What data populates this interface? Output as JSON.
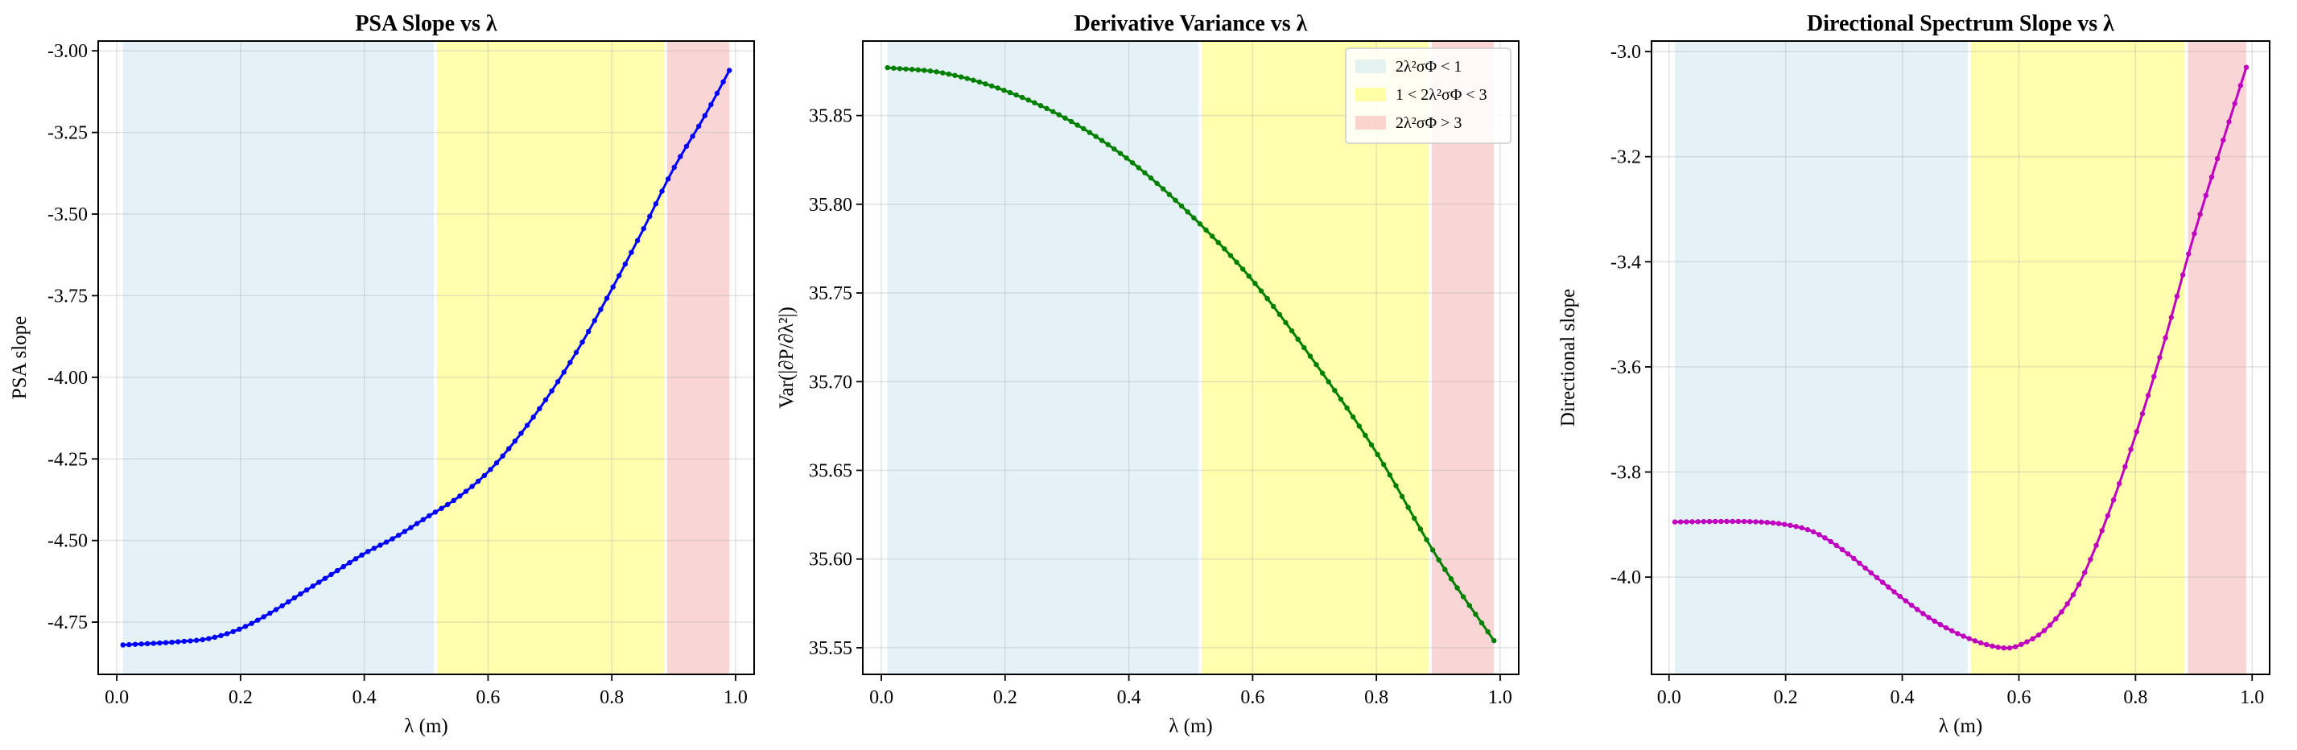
{
  "chart_data": [
    {
      "type": "line",
      "title": "PSA Slope vs λ",
      "xlabel": "λ (m)",
      "ylabel": "PSA slope",
      "xlim": [
        -0.03,
        1.03
      ],
      "ylim": [
        -4.91,
        -2.97
      ],
      "xticks": [
        0.0,
        0.2,
        0.4,
        0.6,
        0.8,
        1.0
      ],
      "xtick_labels": [
        "0.0",
        "0.2",
        "0.4",
        "0.6",
        "0.8",
        "1.0"
      ],
      "yticks": [
        -3.0,
        -3.25,
        -3.5,
        -3.75,
        -4.0,
        -4.25,
        -4.5,
        -4.75
      ],
      "ytick_labels": [
        "-3.00",
        "-3.25",
        "-3.50",
        "-3.75",
        "-4.00",
        "-4.25",
        "-4.50",
        "-4.75"
      ],
      "grid": true,
      "regions": [
        {
          "from": 0.01,
          "to": 0.515,
          "color": "#add8e6"
        },
        {
          "from": 0.515,
          "to": 0.887,
          "color": "#ffff00"
        },
        {
          "from": 0.887,
          "to": 0.99,
          "color": "#f08080"
        }
      ],
      "series": [
        {
          "color": "#0000ff",
          "x": [
            0.01,
            0.1,
            0.15,
            0.2,
            0.25,
            0.3,
            0.35,
            0.4,
            0.45,
            0.5,
            0.55,
            0.6,
            0.65,
            0.7,
            0.75,
            0.8,
            0.85,
            0.9,
            0.95,
            0.99
          ],
          "y": [
            -4.82,
            -4.81,
            -4.8,
            -4.77,
            -4.72,
            -4.66,
            -4.6,
            -4.54,
            -4.49,
            -4.43,
            -4.37,
            -4.29,
            -4.18,
            -4.05,
            -3.9,
            -3.73,
            -3.55,
            -3.36,
            -3.2,
            -3.06
          ]
        }
      ]
    },
    {
      "type": "line",
      "title": "Derivative Variance vs λ",
      "xlabel": "λ (m)",
      "ylabel": "Var(|∂P/∂λ²|)",
      "xlim": [
        -0.03,
        1.03
      ],
      "ylim": [
        35.535,
        35.892
      ],
      "xticks": [
        0.0,
        0.2,
        0.4,
        0.6,
        0.8,
        1.0
      ],
      "xtick_labels": [
        "0.0",
        "0.2",
        "0.4",
        "0.6",
        "0.8",
        "1.0"
      ],
      "yticks": [
        35.85,
        35.8,
        35.75,
        35.7,
        35.65,
        35.6,
        35.55
      ],
      "ytick_labels": [
        "35.85",
        "35.80",
        "35.75",
        "35.70",
        "35.65",
        "35.60",
        "35.55"
      ],
      "grid": true,
      "legend_position": "top-right",
      "legend": [
        {
          "label": "2λ²σΦ < 1",
          "color": "#add8e6"
        },
        {
          "label": "1 < 2λ²σΦ < 3",
          "color": "#ffff00"
        },
        {
          "label": "2λ²σΦ > 3",
          "color": "#f08080"
        }
      ],
      "regions": [
        {
          "from": 0.01,
          "to": 0.515,
          "color": "#add8e6"
        },
        {
          "from": 0.515,
          "to": 0.887,
          "color": "#ffff00"
        },
        {
          "from": 0.887,
          "to": 0.99,
          "color": "#f08080"
        }
      ],
      "series": [
        {
          "color": "#008000",
          "x": [
            0.01,
            0.1,
            0.2,
            0.3,
            0.4,
            0.5,
            0.6,
            0.7,
            0.8,
            0.9,
            0.99
          ],
          "y": [
            35.877,
            35.874,
            35.864,
            35.848,
            35.825,
            35.794,
            35.757,
            35.711,
            35.66,
            35.6,
            35.554
          ]
        }
      ]
    },
    {
      "type": "line",
      "title": "Directional Spectrum Slope vs λ",
      "xlabel": "λ (m)",
      "ylabel": "Directional slope",
      "xlim": [
        -0.03,
        1.03
      ],
      "ylim": [
        -4.185,
        -2.98
      ],
      "xticks": [
        0.0,
        0.2,
        0.4,
        0.6,
        0.8,
        1.0
      ],
      "xtick_labels": [
        "0.0",
        "0.2",
        "0.4",
        "0.6",
        "0.8",
        "1.0"
      ],
      "yticks": [
        -3.0,
        -3.2,
        -3.4,
        -3.6,
        -3.8,
        -4.0
      ],
      "ytick_labels": [
        "-3.0",
        "-3.2",
        "-3.4",
        "-3.6",
        "-3.8",
        "-4.0"
      ],
      "grid": true,
      "regions": [
        {
          "from": 0.01,
          "to": 0.515,
          "color": "#add8e6"
        },
        {
          "from": 0.515,
          "to": 0.887,
          "color": "#ffff00"
        },
        {
          "from": 0.887,
          "to": 0.99,
          "color": "#f08080"
        }
      ],
      "series": [
        {
          "color": "#bf00bf",
          "x": [
            0.01,
            0.1,
            0.2,
            0.25,
            0.3,
            0.35,
            0.4,
            0.45,
            0.5,
            0.55,
            0.58,
            0.6,
            0.65,
            0.7,
            0.75,
            0.8,
            0.85,
            0.9,
            0.95,
            0.99
          ],
          "y": [
            -3.895,
            -3.894,
            -3.9,
            -3.915,
            -3.95,
            -3.995,
            -4.04,
            -4.08,
            -4.11,
            -4.13,
            -4.135,
            -4.13,
            -4.095,
            -4.02,
            -3.89,
            -3.73,
            -3.55,
            -3.35,
            -3.17,
            -3.03
          ]
        }
      ]
    }
  ]
}
